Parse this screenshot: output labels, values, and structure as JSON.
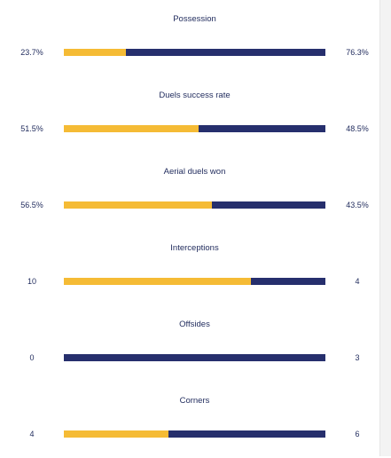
{
  "colors": {
    "home": "#f5bb35",
    "away": "#262f6d",
    "text": "#1f2a5c"
  },
  "stats": [
    {
      "title": "Possession",
      "home": "23.7%",
      "away": "76.3%",
      "home_share": 0.237
    },
    {
      "title": "Duels success rate",
      "home": "51.5%",
      "away": "48.5%",
      "home_share": 0.515
    },
    {
      "title": "Aerial duels won",
      "home": "56.5%",
      "away": "43.5%",
      "home_share": 0.565
    },
    {
      "title": "Interceptions",
      "home": "10",
      "away": "4",
      "home_share": 0.714
    },
    {
      "title": "Offsides",
      "home": "0",
      "away": "3",
      "home_share": 0.0
    },
    {
      "title": "Corners",
      "home": "4",
      "away": "6",
      "home_share": 0.4
    }
  ]
}
